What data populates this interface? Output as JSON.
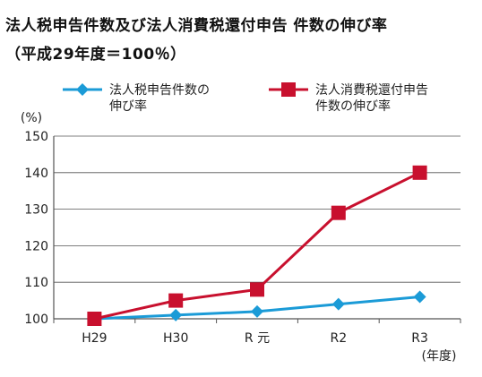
{
  "header": {
    "title_line1": "法人税申告件数及び法人消費税還付申告 件数の伸び率",
    "title_line2": "（平成29年度＝100％）"
  },
  "chart_data": {
    "type": "line",
    "categories": [
      "H29",
      "H30",
      "R 元",
      "R2",
      "R3"
    ],
    "series": [
      {
        "name": "法人税申告件数の伸び率",
        "name_lines": [
          "法人税申告件数の",
          "伸び率"
        ],
        "values": [
          100,
          101,
          102,
          104,
          106
        ],
        "color": "#1b9bd7",
        "marker": "diamond"
      },
      {
        "name": "法人消費税還付申告件数の伸び率",
        "name_lines": [
          "法人消費税還付申告",
          "件数の伸び率"
        ],
        "values": [
          100,
          105,
          108,
          129,
          140
        ],
        "color": "#c8102e",
        "marker": "square"
      }
    ],
    "ylabel": "(%)",
    "xlabel": "(年度)",
    "ylim": [
      100,
      150
    ],
    "yticks": [
      100,
      110,
      120,
      130,
      140,
      150
    ],
    "grid": true,
    "legend": "top"
  }
}
